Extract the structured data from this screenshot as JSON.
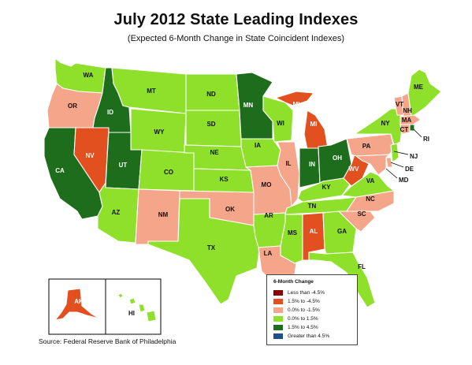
{
  "title": "July 2012 State Leading Indexes",
  "subtitle": "(Expected 6-Month Change in State Coincident Indexes)",
  "source": "Source: Federal Reserve Bank of Philadelphia",
  "legend": {
    "title": "6-Month Change",
    "items": [
      {
        "label": "Less than -4.5%",
        "color": "#8b0000"
      },
      {
        "label": "1.5% to -4.5%",
        "color": "#e2501f"
      },
      {
        "label": "0.0% to -1.5%",
        "color": "#f4a58a"
      },
      {
        "label": "0.0% to  1.5%",
        "color": "#8fe02a"
      },
      {
        "label": "1.5% to  4.5%",
        "color": "#1d6d1d"
      },
      {
        "label": "Greater than 4.5%",
        "color": "#1f4f8a"
      }
    ]
  },
  "states": {
    "WA": {
      "label": "WA",
      "color": "#8fe02a"
    },
    "OR": {
      "label": "OR",
      "color": "#f4a58a"
    },
    "CA": {
      "label": "CA",
      "color": "#1d6d1d"
    },
    "NV": {
      "label": "NV",
      "color": "#e2501f"
    },
    "ID": {
      "label": "ID",
      "color": "#1d6d1d"
    },
    "MT": {
      "label": "MT",
      "color": "#8fe02a"
    },
    "WY": {
      "label": "WY",
      "color": "#8fe02a"
    },
    "UT": {
      "label": "UT",
      "color": "#1d6d1d"
    },
    "AZ": {
      "label": "AZ",
      "color": "#8fe02a"
    },
    "CO": {
      "label": "CO",
      "color": "#8fe02a"
    },
    "NM": {
      "label": "NM",
      "color": "#f4a58a"
    },
    "ND": {
      "label": "ND",
      "color": "#8fe02a"
    },
    "SD": {
      "label": "SD",
      "color": "#8fe02a"
    },
    "NE": {
      "label": "NE",
      "color": "#8fe02a"
    },
    "KS": {
      "label": "KS",
      "color": "#8fe02a"
    },
    "OK": {
      "label": "OK",
      "color": "#f4a58a"
    },
    "TX": {
      "label": "TX",
      "color": "#8fe02a"
    },
    "MN": {
      "label": "MN",
      "color": "#1d6d1d"
    },
    "IA": {
      "label": "IA",
      "color": "#8fe02a"
    },
    "MO": {
      "label": "MO",
      "color": "#f4a58a"
    },
    "AR": {
      "label": "AR",
      "color": "#8fe02a"
    },
    "LA": {
      "label": "LA",
      "color": "#f4a58a"
    },
    "WI": {
      "label": "WI",
      "color": "#8fe02a"
    },
    "IL": {
      "label": "IL",
      "color": "#f4a58a"
    },
    "MI_UP": {
      "label": "MI",
      "color": "#e2501f"
    },
    "MI": {
      "label": "MI",
      "color": "#e2501f"
    },
    "IN": {
      "label": "IN",
      "color": "#1d6d1d"
    },
    "OH": {
      "label": "OH",
      "color": "#1d6d1d"
    },
    "KY": {
      "label": "KY",
      "color": "#8fe02a"
    },
    "TN": {
      "label": "TN",
      "color": "#8fe02a"
    },
    "MS": {
      "label": "MS",
      "color": "#8fe02a"
    },
    "AL": {
      "label": "AL",
      "color": "#e2501f"
    },
    "GA": {
      "label": "GA",
      "color": "#8fe02a"
    },
    "FL": {
      "label": "FL",
      "color": "#8fe02a"
    },
    "SC": {
      "label": "SC",
      "color": "#f4a58a"
    },
    "NC": {
      "label": "NC",
      "color": "#f4a58a"
    },
    "VA": {
      "label": "VA",
      "color": "#8fe02a"
    },
    "WV": {
      "label": "WV",
      "color": "#e2501f"
    },
    "PA": {
      "label": "PA",
      "color": "#f4a58a"
    },
    "NY": {
      "label": "NY",
      "color": "#8fe02a"
    },
    "VT": {
      "label": "VT",
      "color": "#f4a58a"
    },
    "NH": {
      "label": "NH",
      "color": "#f4a58a"
    },
    "ME": {
      "label": "ME",
      "color": "#8fe02a"
    },
    "MA": {
      "label": "MA",
      "color": "#f4a58a"
    },
    "CT": {
      "label": "CT",
      "color": "#f4a58a"
    },
    "RI": {
      "label": "RI",
      "color": "#1d6d1d"
    },
    "NJ": {
      "label": "NJ",
      "color": "#8fe02a"
    },
    "DE": {
      "label": "DE",
      "color": "#f4a58a"
    },
    "MD": {
      "label": "MD",
      "color": "#f4a58a"
    },
    "AK": {
      "label": "AK",
      "color": "#e2501f"
    },
    "HI": {
      "label": "HI",
      "color": "#8fe02a"
    }
  }
}
